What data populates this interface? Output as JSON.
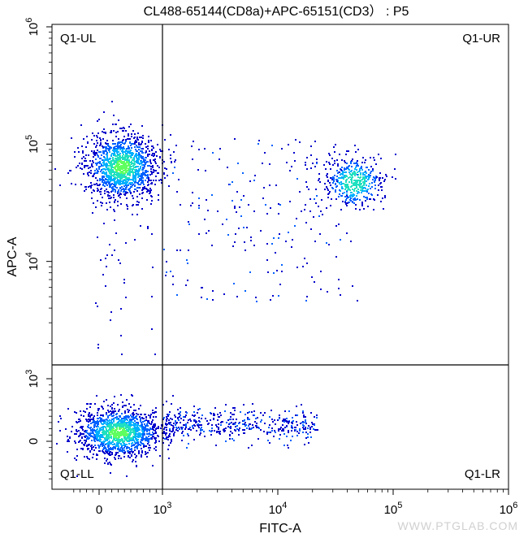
{
  "chart_data": {
    "type": "scatter",
    "title": "CL488-65144(CD8a)+APC-65151(CD3） : P5",
    "xlabel": "FITC-A",
    "ylabel": "APC-A",
    "x_scale": "biexponential",
    "y_scale": "biexponential",
    "x_ticks": [
      {
        "base": "0",
        "exp": ""
      },
      {
        "base": "10",
        "exp": "3"
      },
      {
        "base": "10",
        "exp": "4"
      },
      {
        "base": "10",
        "exp": "5"
      },
      {
        "base": "10",
        "exp": "6"
      }
    ],
    "y_ticks": [
      {
        "base": "0",
        "exp": ""
      },
      {
        "base": "10",
        "exp": "3"
      },
      {
        "base": "10",
        "exp": "4"
      },
      {
        "base": "10",
        "exp": "5"
      },
      {
        "base": "10",
        "exp": "6"
      }
    ],
    "quadrant_gate": {
      "x": 1000,
      "y": 1000
    },
    "quadrants": [
      "Q1-UL",
      "Q1-UR",
      "Q1-LL",
      "Q1-LR"
    ],
    "populations": [
      {
        "quadrant": "Q1-UL",
        "x_center": 350,
        "y_center": 65000,
        "density": "high"
      },
      {
        "quadrant": "Q1-UR",
        "x_center": 45000,
        "y_center": 48000,
        "density": "medium"
      },
      {
        "quadrant": "Q1-LL",
        "x_center": 300,
        "y_center": 150,
        "density": "high"
      },
      {
        "quadrant": "Q1-LR",
        "x_center": 4000,
        "y_center": 150,
        "density": "low"
      }
    ],
    "grid": false,
    "density_colors": [
      "#0000cc",
      "#0060ff",
      "#00b0ff",
      "#20e0c0",
      "#60ff60"
    ]
  },
  "watermark": "WWW.PTGLAB.COM"
}
